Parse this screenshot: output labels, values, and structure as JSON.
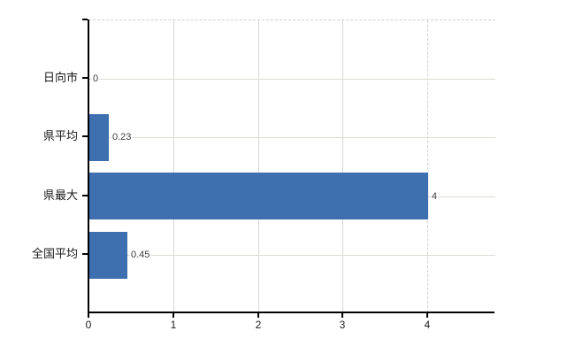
{
  "chart_data": {
    "type": "bar",
    "orientation": "horizontal",
    "title": "",
    "xlabel": "",
    "ylabel": "",
    "categories": [
      "日向市",
      "県平均",
      "県最大",
      "全国平均"
    ],
    "values": [
      0,
      0.23,
      4,
      0.45
    ],
    "value_labels": [
      "0",
      "0.23",
      "4",
      "0.45"
    ],
    "x_ticks": [
      0,
      1,
      2,
      3,
      4
    ],
    "x_tick_labels": [
      "0",
      "1",
      "2",
      "3",
      "4"
    ],
    "xlim": [
      0,
      4.8
    ],
    "grid": "on",
    "dashed_gridline_value": 4,
    "legend": "none",
    "colors": {
      "bar": "#3e6fae",
      "gridline_horizontal": "#d9ddd3",
      "gridline_vertical": "#d6d6d6",
      "dashed_line": "#cfcfcf",
      "axis": "#000000",
      "value_label": "#3c3c3c",
      "tick_label": "#1a1a1a",
      "background": "#ffffff"
    }
  }
}
